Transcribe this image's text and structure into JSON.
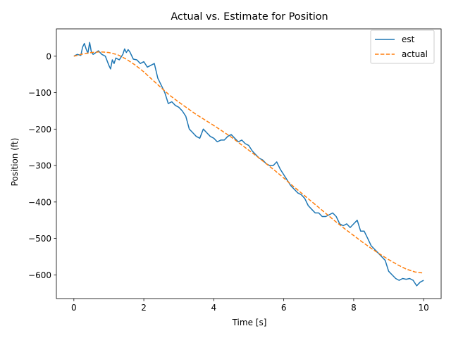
{
  "chart_data": {
    "type": "line",
    "title": "Actual vs. Estimate for Position",
    "xlabel": "Time [s]",
    "ylabel": "Position (ft)",
    "xlim": [
      -0.5,
      10.5
    ],
    "ylim": [
      -665,
      75
    ],
    "xticks": [
      0,
      2,
      4,
      6,
      8,
      10
    ],
    "yticks": [
      0,
      -100,
      -200,
      -300,
      -400,
      -500,
      -600
    ],
    "xtick_labels": [
      "0",
      "2",
      "4",
      "6",
      "8",
      "10"
    ],
    "ytick_labels": [
      "0",
      "−100",
      "−200",
      "−300",
      "−400",
      "−500",
      "−600"
    ],
    "grid": false,
    "legend_position": "top-right",
    "colors": {
      "est": "#1f77b4",
      "actual": "#ff7f0e"
    },
    "series": [
      {
        "name": "est",
        "style": "solid",
        "x": [
          0,
          0.1,
          0.2,
          0.25,
          0.3,
          0.35,
          0.4,
          0.45,
          0.5,
          0.55,
          0.6,
          0.7,
          0.8,
          0.9,
          1.0,
          1.05,
          1.1,
          1.15,
          1.2,
          1.3,
          1.4,
          1.45,
          1.5,
          1.55,
          1.6,
          1.7,
          1.8,
          1.9,
          2.0,
          2.1,
          2.2,
          2.3,
          2.4,
          2.5,
          2.6,
          2.7,
          2.8,
          2.9,
          3.0,
          3.1,
          3.2,
          3.3,
          3.4,
          3.5,
          3.6,
          3.7,
          3.8,
          3.9,
          4.0,
          4.1,
          4.2,
          4.3,
          4.4,
          4.5,
          4.6,
          4.7,
          4.8,
          4.9,
          5.0,
          5.1,
          5.2,
          5.3,
          5.4,
          5.5,
          5.6,
          5.7,
          5.8,
          5.9,
          6.0,
          6.1,
          6.2,
          6.3,
          6.4,
          6.5,
          6.6,
          6.7,
          6.8,
          6.9,
          7.0,
          7.1,
          7.2,
          7.3,
          7.4,
          7.5,
          7.6,
          7.7,
          7.8,
          7.9,
          8.0,
          8.1,
          8.2,
          8.3,
          8.4,
          8.5,
          8.6,
          8.7,
          8.8,
          8.9,
          9.0,
          9.1,
          9.2,
          9.3,
          9.4,
          9.5,
          9.6,
          9.7,
          9.8,
          9.9,
          10.0
        ],
        "y": [
          0,
          5,
          2,
          25,
          35,
          20,
          8,
          38,
          12,
          5,
          8,
          15,
          5,
          0,
          -25,
          -35,
          -10,
          -20,
          -5,
          -10,
          5,
          20,
          10,
          18,
          12,
          -8,
          -10,
          -20,
          -15,
          -30,
          -25,
          -20,
          -60,
          -80,
          -100,
          -130,
          -125,
          -135,
          -140,
          -150,
          -165,
          -200,
          -210,
          -220,
          -225,
          -200,
          -210,
          -220,
          -225,
          -235,
          -230,
          -230,
          -220,
          -215,
          -225,
          -235,
          -230,
          -240,
          -245,
          -260,
          -270,
          -280,
          -285,
          -295,
          -300,
          -300,
          -290,
          -310,
          -325,
          -340,
          -355,
          -365,
          -375,
          -380,
          -390,
          -410,
          -420,
          -430,
          -430,
          -440,
          -440,
          -435,
          -430,
          -440,
          -460,
          -465,
          -460,
          -470,
          -460,
          -450,
          -480,
          -480,
          -500,
          -520,
          -530,
          -540,
          -550,
          -560,
          -590,
          -600,
          -610,
          -615,
          -610,
          -612,
          -610,
          -615,
          -630,
          -620,
          -615
        ]
      },
      {
        "name": "actual",
        "style": "dashed",
        "x": [
          0,
          0.25,
          0.5,
          0.75,
          1.0,
          1.25,
          1.5,
          1.75,
          2.0,
          2.25,
          2.5,
          2.75,
          3.0,
          3.25,
          3.5,
          3.75,
          4.0,
          4.25,
          4.5,
          4.75,
          5.0,
          5.25,
          5.5,
          5.75,
          6.0,
          6.25,
          6.5,
          6.75,
          7.0,
          7.25,
          7.5,
          7.75,
          8.0,
          8.25,
          8.5,
          8.75,
          9.0,
          9.25,
          9.5,
          9.75,
          10.0
        ],
        "y": [
          0,
          6,
          10,
          12,
          10,
          4,
          -8,
          -24,
          -43,
          -65,
          -87,
          -108,
          -126,
          -143,
          -160,
          -175,
          -190,
          -206,
          -222,
          -240,
          -258,
          -276,
          -295,
          -314,
          -334,
          -355,
          -375,
          -395,
          -415,
          -435,
          -455,
          -474,
          -492,
          -510,
          -527,
          -543,
          -558,
          -572,
          -584,
          -592,
          -595
        ]
      }
    ]
  }
}
